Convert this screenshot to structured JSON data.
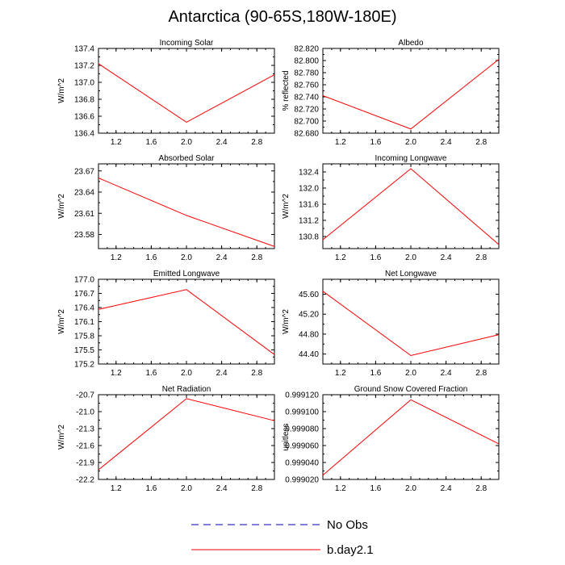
{
  "title": "Antarctica (90-65S,180W-180E)",
  "legend": [
    {
      "label": "No Obs",
      "color": "#0000b0",
      "dash": true
    },
    {
      "label": "b.day2.1",
      "color": "#ff0000",
      "dash": false
    }
  ],
  "chart_data": [
    {
      "type": "line",
      "title": "Incoming Solar",
      "ylabel": "W/m^2",
      "xlim": [
        1.0,
        3.0
      ],
      "xticks": [
        "1.2",
        "1.6",
        "2.0",
        "2.4",
        "2.8"
      ],
      "ylim": [
        136.4,
        137.4
      ],
      "yticks": [
        "136.4",
        "136.6",
        "136.8",
        "137.0",
        "137.2",
        "137.4"
      ],
      "series": [
        {
          "name": "b.day2.1",
          "x": [
            1.0,
            2.0,
            3.0
          ],
          "y": [
            137.22,
            136.53,
            137.09
          ]
        }
      ]
    },
    {
      "type": "line",
      "title": "Albedo",
      "ylabel": "% reflected",
      "xlim": [
        1.0,
        3.0
      ],
      "xticks": [
        "1.2",
        "1.6",
        "2.0",
        "2.4",
        "2.8"
      ],
      "ylim": [
        82.68,
        82.82
      ],
      "yticks": [
        "82.680",
        "82.700",
        "82.720",
        "82.740",
        "82.760",
        "82.780",
        "82.800",
        "82.820"
      ],
      "series": [
        {
          "name": "b.day2.1",
          "x": [
            1.0,
            2.0,
            3.0
          ],
          "y": [
            82.742,
            82.687,
            82.802
          ]
        }
      ]
    },
    {
      "type": "line",
      "title": "Absorbed Solar",
      "ylabel": "W/m^2",
      "xlim": [
        1.0,
        3.0
      ],
      "xticks": [
        "1.2",
        "1.6",
        "2.0",
        "2.4",
        "2.8"
      ],
      "ylim": [
        23.56,
        23.68
      ],
      "yticks": [
        "23.58",
        "23.61",
        "23.64",
        "23.67"
      ],
      "series": [
        {
          "name": "b.day2.1",
          "x": [
            1.0,
            2.0,
            3.0
          ],
          "y": [
            23.66,
            23.607,
            23.563
          ]
        }
      ]
    },
    {
      "type": "line",
      "title": "Incoming Longwave",
      "ylabel": "W/m^2",
      "xlim": [
        1.0,
        3.0
      ],
      "xticks": [
        "1.2",
        "1.6",
        "2.0",
        "2.4",
        "2.8"
      ],
      "ylim": [
        130.5,
        132.6
      ],
      "yticks": [
        "130.8",
        "131.2",
        "131.6",
        "132.0",
        "132.4"
      ],
      "series": [
        {
          "name": "b.day2.1",
          "x": [
            1.0,
            2.0,
            3.0
          ],
          "y": [
            130.72,
            132.48,
            130.6
          ]
        }
      ]
    },
    {
      "type": "line",
      "title": "Emitted Longwave",
      "ylabel": "W/m^2",
      "xlim": [
        1.0,
        3.0
      ],
      "xticks": [
        "1.2",
        "1.6",
        "2.0",
        "2.4",
        "2.8"
      ],
      "ylim": [
        175.2,
        177.0
      ],
      "yticks": [
        "175.2",
        "175.5",
        "175.8",
        "176.1",
        "176.4",
        "176.7",
        "177.0"
      ],
      "series": [
        {
          "name": "b.day2.1",
          "x": [
            1.0,
            2.0,
            3.0
          ],
          "y": [
            176.36,
            176.78,
            175.4
          ]
        }
      ]
    },
    {
      "type": "line",
      "title": "Net Longwave",
      "ylabel": "W/m^2",
      "xlim": [
        1.0,
        3.0
      ],
      "xticks": [
        "1.2",
        "1.6",
        "2.0",
        "2.4",
        "2.8"
      ],
      "ylim": [
        44.2,
        45.9
      ],
      "yticks": [
        "44.40",
        "44.80",
        "45.20",
        "45.60"
      ],
      "series": [
        {
          "name": "b.day2.1",
          "x": [
            1.0,
            2.0,
            3.0
          ],
          "y": [
            45.66,
            44.37,
            44.79
          ]
        }
      ]
    },
    {
      "type": "line",
      "title": "Net Radiation",
      "ylabel": "W/m^2",
      "xlim": [
        1.0,
        3.0
      ],
      "xticks": [
        "1.2",
        "1.6",
        "2.0",
        "2.4",
        "2.8"
      ],
      "ylim": [
        -22.2,
        -20.7
      ],
      "yticks": [
        "-22.2",
        "-21.9",
        "-21.6",
        "-21.3",
        "-21.0",
        "-20.7"
      ],
      "series": [
        {
          "name": "b.day2.1",
          "x": [
            1.0,
            2.0,
            3.0
          ],
          "y": [
            -22.03,
            -20.77,
            -21.16
          ]
        }
      ]
    },
    {
      "type": "line",
      "title": "Ground Snow Covered Fraction",
      "ylabel": "unitless",
      "xlim": [
        1.0,
        3.0
      ],
      "xticks": [
        "1.2",
        "1.6",
        "2.0",
        "2.4",
        "2.8"
      ],
      "ylim": [
        0.99902,
        0.99912
      ],
      "yticks": [
        "0.999020",
        "0.999040",
        "0.999060",
        "0.999080",
        "0.999100",
        "0.999120"
      ],
      "series": [
        {
          "name": "b.day2.1",
          "x": [
            1.0,
            2.0,
            3.0
          ],
          "y": [
            0.999025,
            0.999114,
            0.999062
          ]
        }
      ]
    }
  ]
}
